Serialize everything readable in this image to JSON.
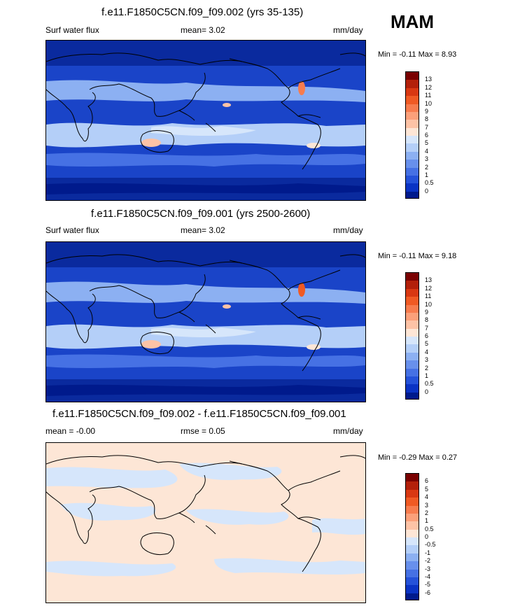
{
  "season": "MAM",
  "panels": [
    {
      "title": "f.e11.F1850C5CN.f09_f09.002 (yrs 35-135)",
      "left_label": "Surf water flux",
      "center_label": "mean=   3.02",
      "right_label": "mm/day",
      "minmax": "Min =  -0.11 Max =   8.93",
      "colorbar": {
        "ticks": [
          "13",
          "12",
          "11",
          "10",
          "9",
          "8",
          "7",
          "6",
          "5",
          "4",
          "3",
          "2",
          "1",
          "0.5",
          "0"
        ],
        "colors": [
          "#7a0000",
          "#b3200a",
          "#d93812",
          "#f05a24",
          "#f77c4e",
          "#fba07a",
          "#fdc3a6",
          "#fde6d6",
          "#d6e6fb",
          "#b4cff8",
          "#8cb0f2",
          "#6890ec",
          "#4671e4",
          "#2552d9",
          "#0a33c4",
          "#001a8c"
        ]
      },
      "map_style": "abs"
    },
    {
      "title": "f.e11.F1850C5CN.f09_f09.001 (yrs 2500-2600)",
      "left_label": "Surf water flux",
      "center_label": "mean=   3.02",
      "right_label": "mm/day",
      "minmax": "Min =  -0.11 Max =   9.18",
      "colorbar": {
        "ticks": [
          "13",
          "12",
          "11",
          "10",
          "9",
          "8",
          "7",
          "6",
          "5",
          "4",
          "3",
          "2",
          "1",
          "0.5",
          "0"
        ],
        "colors": [
          "#7a0000",
          "#b3200a",
          "#d93812",
          "#f05a24",
          "#f77c4e",
          "#fba07a",
          "#fdc3a6",
          "#fde6d6",
          "#d6e6fb",
          "#b4cff8",
          "#8cb0f2",
          "#6890ec",
          "#4671e4",
          "#2552d9",
          "#0a33c4",
          "#001a8c"
        ]
      },
      "map_style": "abs"
    },
    {
      "title": "f.e11.F1850C5CN.f09_f09.002 - f.e11.F1850C5CN.f09_f09.001",
      "left_label": "mean =  -0.00",
      "center_label": "rmse =   0.05",
      "right_label": "mm/day",
      "minmax": "Min =  -0.29 Max =   0.27",
      "colorbar": {
        "ticks": [
          "6",
          "5",
          "4",
          "3",
          "2",
          "1",
          "0.5",
          "0",
          "-0.5",
          "-1",
          "-2",
          "-3",
          "-4",
          "-5",
          "-6"
        ],
        "colors": [
          "#7a0000",
          "#b3200a",
          "#d93812",
          "#f05a24",
          "#f77c4e",
          "#fba07a",
          "#fdc3a6",
          "#fde6d6",
          "#d6e6fb",
          "#b4cff8",
          "#8cb0f2",
          "#6890ec",
          "#4671e4",
          "#2552d9",
          "#0a33c4",
          "#001a8c"
        ]
      },
      "map_style": "diff"
    }
  ]
}
